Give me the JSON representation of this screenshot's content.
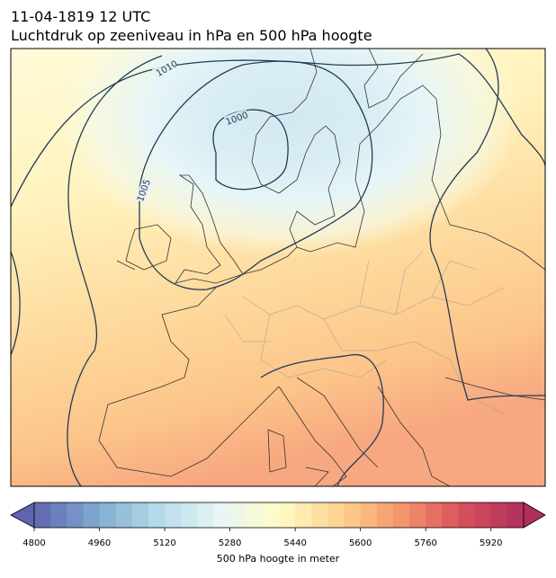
{
  "title": "11-04-1819 12 UTC",
  "subtitle": "Luchtdruk op zeeniveau in hPa en 500 hPa hoogte",
  "contour_labels": [
    1010,
    1000,
    1005
  ],
  "colorbar": {
    "label": "500 hPa hoogte in meter",
    "lim": [
      4800,
      6000
    ],
    "step": 40,
    "ticks": [
      4800,
      4960,
      5120,
      5280,
      5440,
      5600,
      5760,
      5920
    ],
    "colormap": [
      "#5e64b0",
      "#7fa9cf",
      "#b2dae9",
      "#e6f5f7",
      "#fefcc6",
      "#fdd28f",
      "#f5956b",
      "#d8505c",
      "#b02f5e"
    ]
  }
}
